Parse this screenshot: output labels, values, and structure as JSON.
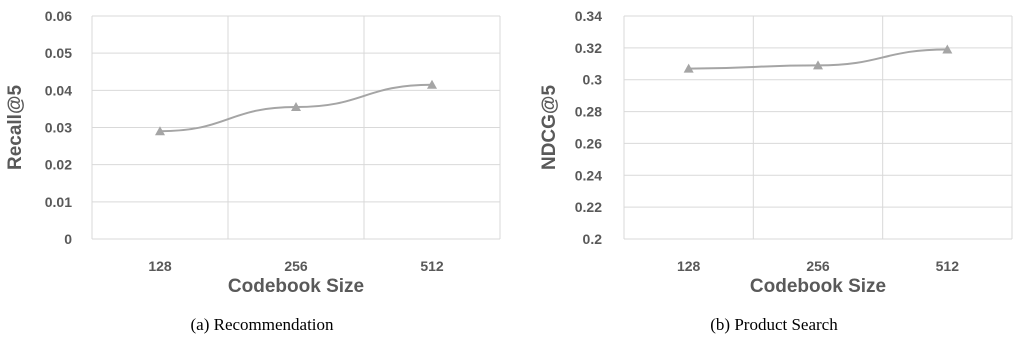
{
  "colors": {
    "series": "#a5a5a5",
    "grid": "#d9d9d9",
    "text": "#595959"
  },
  "chart_data": [
    {
      "type": "line",
      "caption": "(a) Recommendation",
      "categories": [
        "128",
        "256",
        "512"
      ],
      "xlabel": "Codebook Size",
      "ylabel": "Recall@5",
      "ylim": [
        0,
        0.06
      ],
      "ytick_labels": [
        "0",
        "0.01",
        "0.02",
        "0.03",
        "0.04",
        "0.05",
        "0.06"
      ],
      "grid": true,
      "series": [
        {
          "values": [
            0.029,
            0.0355,
            0.0415
          ],
          "marker": "triangle"
        }
      ]
    },
    {
      "type": "line",
      "caption": "(b) Product Search",
      "categories": [
        "128",
        "256",
        "512"
      ],
      "xlabel": "Codebook Size",
      "ylabel": "NDCG@5",
      "ylim": [
        0.2,
        0.34
      ],
      "ytick_labels": [
        "0.2",
        "0.22",
        "0.24",
        "0.26",
        "0.28",
        "0.3",
        "0.32",
        "0.34"
      ],
      "grid": true,
      "series": [
        {
          "values": [
            0.307,
            0.309,
            0.319
          ],
          "marker": "triangle"
        }
      ]
    }
  ]
}
